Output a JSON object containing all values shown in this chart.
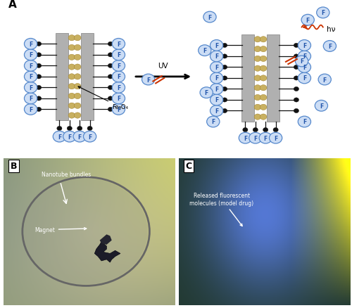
{
  "title_A": "A",
  "title_B": "B",
  "title_C": "C",
  "bg_color": "#ffffff",
  "tube_color": "#c8b060",
  "tube_wall_color": "#b0b0b0",
  "circle_edge_color": "#5588cc",
  "circle_face_color": "#ccddf5",
  "dot_color": "#111111",
  "f_label_color": "#2255aa",
  "fe_label": "Fe₃O₄",
  "uv_label": "UV",
  "hv_label": "hν",
  "magnet_label": "Magnet",
  "nanotube_label": "Nanotube bundles",
  "released_label": "Released fluorescent\nmolecules (model drug)"
}
